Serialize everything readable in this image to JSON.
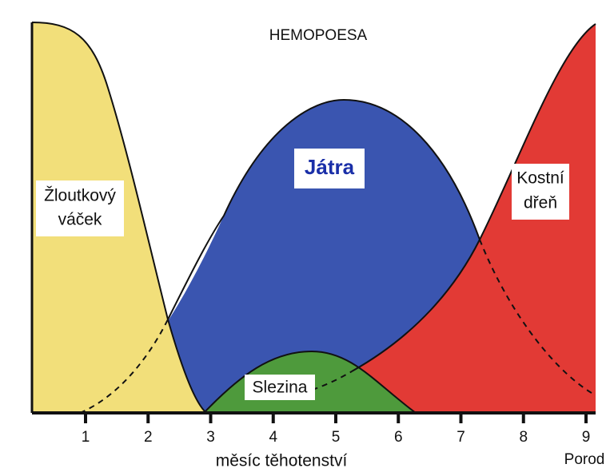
{
  "title": "HEMOPOESA",
  "regions": {
    "yolk_sac": [
      "Žloutkový",
      "váček"
    ],
    "liver": "Játra",
    "bone_marrow": [
      "Kostní",
      "dřeň"
    ],
    "spleen": "Slezina"
  },
  "axis": {
    "ticks": [
      "1",
      "2",
      "3",
      "4",
      "5",
      "6",
      "7",
      "8",
      "9"
    ],
    "birth": "Porod",
    "label": "měsíc těhotenství"
  }
}
